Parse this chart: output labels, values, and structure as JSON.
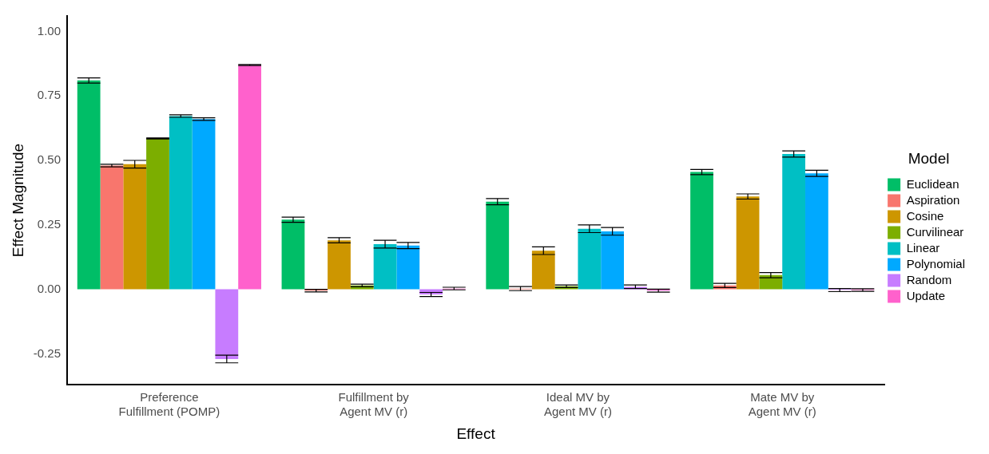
{
  "chart_data": {
    "type": "bar",
    "xlabel": "Effect",
    "ylabel": "Effect Magnitude",
    "legend_title": "Model",
    "legend": "right",
    "grid": false,
    "categories": [
      "Preference\nFulfillment (POMP)",
      "Fulfillment by\nAgent MV (r)",
      "Ideal MV by\nAgent MV (r)",
      "Mate MV by\nAgent MV (r)"
    ],
    "ylim": [
      -0.37,
      1.06
    ],
    "yticks": [
      {
        "value": -0.25,
        "label": "-0.25"
      },
      {
        "value": 0,
        "label": "0.00"
      },
      {
        "value": 0.25,
        "label": "0.25"
      },
      {
        "value": 0.5,
        "label": "0.50"
      },
      {
        "value": 0.75,
        "label": "0.75"
      },
      {
        "value": 1,
        "label": "1.00"
      }
    ],
    "series": [
      {
        "name": "Euclidean",
        "color": "#00be67",
        "values": [
          0.81,
          0.27,
          0.34,
          0.455
        ],
        "errors": [
          0.01,
          0.01,
          0.012,
          0.01
        ]
      },
      {
        "name": "Aspiration",
        "color": "#f8766d",
        "values": [
          0.48,
          -0.005,
          0.003,
          0.015
        ],
        "errors": [
          0.005,
          0.005,
          0.008,
          0.008
        ]
      },
      {
        "name": "Cosine",
        "color": "#cd9600",
        "values": [
          0.485,
          0.19,
          0.15,
          0.36
        ],
        "errors": [
          0.015,
          0.01,
          0.015,
          0.01
        ]
      },
      {
        "name": "Curvilinear",
        "color": "#7cae00",
        "values": [
          0.585,
          0.015,
          0.012,
          0.055
        ],
        "errors": [
          0.002,
          0.005,
          0.005,
          0.01
        ]
      },
      {
        "name": "Linear",
        "color": "#00bfc4",
        "values": [
          0.672,
          0.175,
          0.235,
          0.525
        ],
        "errors": [
          0.005,
          0.015,
          0.015,
          0.012
        ]
      },
      {
        "name": "Polynomial",
        "color": "#00a9ff",
        "values": [
          0.66,
          0.17,
          0.225,
          0.45
        ],
        "errors": [
          0.005,
          0.012,
          0.015,
          0.012
        ]
      },
      {
        "name": "Random",
        "color": "#c77cff",
        "values": [
          -0.27,
          -0.02,
          0.01,
          -0.003
        ],
        "errors": [
          0.015,
          0.008,
          0.007,
          0.006
        ]
      },
      {
        "name": "Update",
        "color": "#ff61cc",
        "values": [
          0.87,
          0.003,
          -0.005,
          -0.003
        ],
        "errors": [
          0.002,
          0.005,
          0.006,
          0.005
        ]
      }
    ]
  }
}
